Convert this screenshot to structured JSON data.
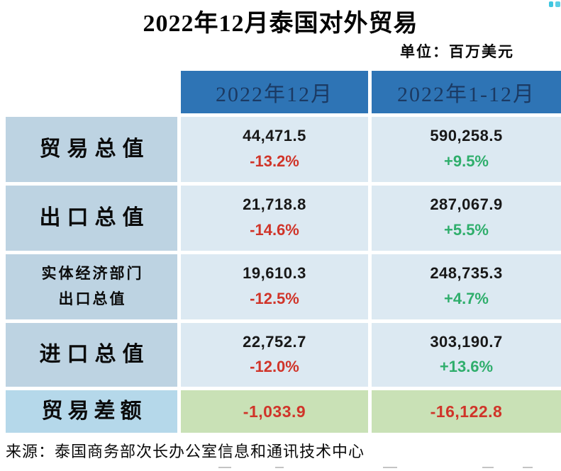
{
  "title": "2022年12月泰国对外贸易",
  "unit_label": "单位：百万美元",
  "source": "来源：泰国商务部次长办公室信息和通讯技术中心",
  "table": {
    "columns": [
      "2022年12月",
      "2022年1-12月"
    ],
    "rows": [
      {
        "label": "贸易总值",
        "cells": [
          {
            "value": "44,471.5",
            "pct": "-13.2%",
            "trend": "negative"
          },
          {
            "value": "590,258.5",
            "pct": "+9.5%",
            "trend": "positive"
          }
        ]
      },
      {
        "label": "出口总值",
        "cells": [
          {
            "value": "21,718.8",
            "pct": "-14.6%",
            "trend": "negative"
          },
          {
            "value": "287,067.9",
            "pct": "+5.5%",
            "trend": "positive"
          }
        ]
      },
      {
        "label": "实体经济部门\n出口总值",
        "cells": [
          {
            "value": "19,610.3",
            "pct": "-12.5%",
            "trend": "negative"
          },
          {
            "value": "248,735.3",
            "pct": "+4.7%",
            "trend": "positive"
          }
        ]
      },
      {
        "label": "进口总值",
        "cells": [
          {
            "value": "22,752.7",
            "pct": "-12.0%",
            "trend": "negative"
          },
          {
            "value": "303,190.7",
            "pct": "+13.6%",
            "trend": "positive"
          }
        ]
      },
      {
        "label": "贸易差额",
        "cells": [
          {
            "value": "-1,033.9",
            "trend": "negative"
          },
          {
            "value": "-16,122.8",
            "trend": "negative"
          }
        ]
      }
    ]
  },
  "colors": {
    "header_bg": "#2e74b5",
    "header_text": "#1b3a63",
    "label_bg": "#bdd3e2",
    "balance_label_bg": "#b5d8ea",
    "cell_bg": "#dce9f2",
    "balance_cell_bg": "#c9e1b6",
    "negative": "#d03429",
    "positive": "#2fae6c",
    "watermark": "#3ec6e0"
  }
}
